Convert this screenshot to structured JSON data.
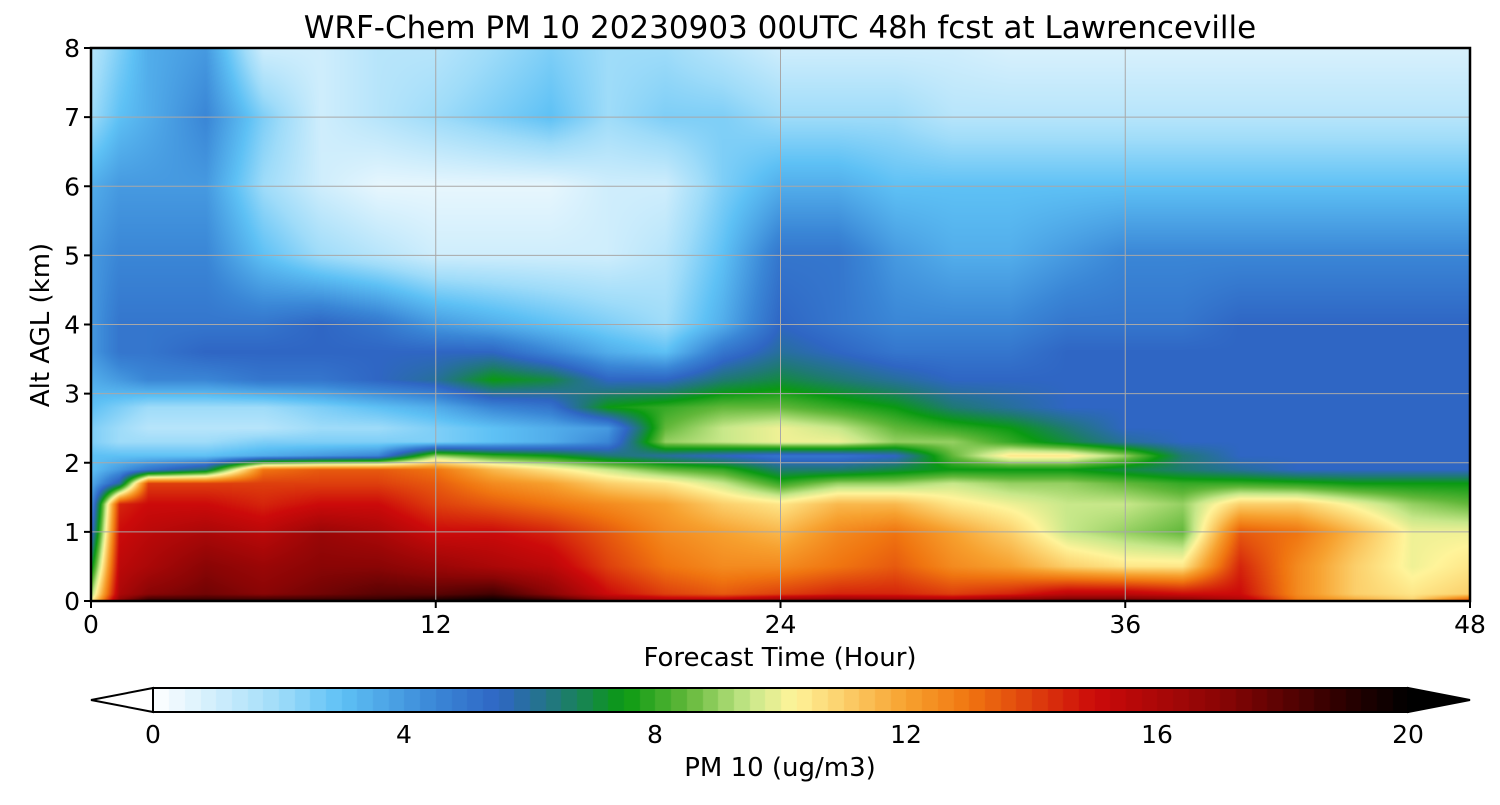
{
  "chart_data": {
    "type": "heatmap",
    "title": "WRF-Chem PM 10  20230903 00UTC 48h fcst at Lawrenceville",
    "xlabel": "Forecast Time (Hour)",
    "ylabel": "Alt AGL (km)",
    "xlim": [
      0,
      48
    ],
    "ylim": [
      0,
      8
    ],
    "x_ticks": [
      "0",
      "12",
      "24",
      "36",
      "48"
    ],
    "y_ticks": [
      "0",
      "1",
      "2",
      "3",
      "4",
      "5",
      "6",
      "7",
      "8"
    ],
    "grid": true,
    "colorbar": {
      "label": "PM 10  (ug/m3)",
      "range": [
        0,
        20
      ],
      "ticks": [
        "0",
        "4",
        "8",
        "12",
        "16",
        "20"
      ],
      "extend": "both",
      "placement": "bottom",
      "stops": [
        {
          "v": 0,
          "color": "#ffffff"
        },
        {
          "v": 2,
          "color": "#9fdcf9"
        },
        {
          "v": 3,
          "color": "#5ec1f5"
        },
        {
          "v": 4.5,
          "color": "#3a86d6"
        },
        {
          "v": 5.5,
          "color": "#2f66c4"
        },
        {
          "v": 6.5,
          "color": "#1f7a73"
        },
        {
          "v": 7.5,
          "color": "#0a9a12"
        },
        {
          "v": 8.5,
          "color": "#62b83a"
        },
        {
          "v": 9.5,
          "color": "#c8e88a"
        },
        {
          "v": 10.2,
          "color": "#fff49a"
        },
        {
          "v": 12,
          "color": "#f7a12f"
        },
        {
          "v": 13,
          "color": "#f07510"
        },
        {
          "v": 15,
          "color": "#cc0a0a"
        },
        {
          "v": 17,
          "color": "#8a0505"
        },
        {
          "v": 19,
          "color": "#2a0000"
        },
        {
          "v": 20,
          "color": "#000000"
        }
      ]
    },
    "field": {
      "x": [
        0,
        1,
        2,
        4,
        6,
        8,
        10,
        12,
        14,
        16,
        18,
        20,
        22,
        24,
        26,
        28,
        30,
        32,
        34,
        36,
        38,
        40,
        42,
        44,
        46,
        48
      ],
      "y": [
        0,
        0.1,
        0.5,
        1.0,
        1.4,
        1.7,
        1.9,
        2.1,
        2.3,
        2.5,
        2.8,
        3.2,
        3.6,
        4.0,
        5.0,
        6.0,
        7.0,
        8.0
      ],
      "z": [
        [
          10.0,
          17.0,
          19.0,
          19.0,
          19.0,
          19.0,
          19.0,
          19.5,
          20.0,
          19.0,
          17.0,
          16.0,
          16.0,
          17.0,
          17.5,
          17.0,
          16.5,
          17.5,
          18.0,
          18.0,
          17.5,
          16.0,
          13.0,
          12.0,
          11.0,
          14.0
        ],
        [
          9.0,
          16.0,
          17.0,
          17.5,
          17.0,
          17.5,
          18.0,
          18.0,
          18.5,
          17.0,
          15.0,
          14.0,
          13.5,
          14.0,
          14.5,
          14.5,
          14.0,
          14.5,
          15.5,
          15.5,
          15.0,
          15.0,
          12.5,
          11.0,
          10.5,
          11.0
        ],
        [
          7.0,
          15.5,
          16.0,
          17.0,
          16.5,
          17.0,
          17.0,
          16.5,
          16.0,
          15.5,
          14.0,
          13.0,
          12.5,
          12.5,
          13.0,
          13.5,
          12.5,
          12.0,
          11.0,
          10.5,
          10.5,
          14.5,
          12.5,
          11.0,
          10.0,
          10.5
        ],
        [
          5.0,
          15.0,
          15.5,
          16.0,
          15.5,
          16.5,
          16.0,
          15.0,
          15.0,
          14.5,
          13.5,
          12.5,
          12.0,
          11.5,
          12.5,
          13.0,
          12.0,
          11.0,
          9.5,
          9.0,
          8.5,
          13.5,
          13.0,
          11.5,
          10.0,
          10.0
        ],
        [
          4.0,
          14.5,
          15.0,
          15.0,
          14.5,
          15.0,
          15.0,
          14.0,
          13.5,
          13.0,
          12.5,
          12.0,
          11.0,
          10.5,
          11.5,
          11.5,
          10.5,
          10.0,
          9.5,
          9.5,
          9.0,
          11.0,
          11.0,
          10.0,
          9.0,
          8.5
        ],
        [
          3.5,
          6.0,
          14.0,
          14.0,
          14.0,
          14.0,
          14.0,
          13.5,
          12.5,
          12.0,
          11.0,
          10.5,
          9.5,
          8.0,
          9.0,
          9.0,
          9.5,
          9.0,
          9.0,
          8.5,
          8.0,
          8.0,
          7.8,
          7.5,
          7.5,
          7.5
        ],
        [
          3.0,
          4.0,
          5.0,
          6.5,
          13.0,
          13.5,
          13.5,
          13.0,
          11.5,
          10.5,
          9.5,
          8.5,
          8.0,
          6.5,
          6.5,
          7.0,
          7.5,
          7.5,
          7.5,
          7.0,
          6.5,
          6.0,
          5.5,
          5.5,
          5.5,
          5.5
        ],
        [
          3.0,
          3.0,
          3.0,
          3.0,
          3.5,
          4.0,
          4.5,
          9.0,
          8.0,
          7.5,
          6.5,
          6.0,
          5.5,
          5.0,
          5.0,
          5.5,
          8.5,
          10.5,
          10.5,
          9.0,
          6.5,
          5.5,
          5.5,
          5.5,
          5.5,
          5.5
        ],
        [
          2.5,
          2.0,
          2.0,
          2.0,
          2.5,
          2.5,
          2.5,
          2.5,
          3.0,
          3.5,
          4.5,
          9.0,
          9.5,
          10.0,
          10.0,
          9.0,
          9.0,
          8.0,
          7.0,
          6.0,
          5.5,
          5.5,
          5.5,
          5.5,
          5.5,
          5.5
        ],
        [
          2.5,
          2.0,
          1.5,
          1.5,
          1.5,
          2.0,
          2.0,
          2.5,
          3.0,
          3.5,
          4.0,
          8.5,
          9.5,
          10.0,
          9.5,
          8.5,
          8.0,
          7.5,
          6.5,
          5.5,
          5.5,
          5.5,
          5.5,
          5.5,
          5.5,
          5.5
        ],
        [
          3.0,
          2.5,
          2.0,
          2.0,
          2.0,
          2.5,
          3.0,
          3.5,
          4.5,
          5.0,
          7.5,
          8.0,
          8.5,
          8.5,
          8.0,
          7.5,
          6.5,
          6.0,
          5.5,
          5.5,
          5.5,
          5.5,
          5.5,
          5.5,
          5.5,
          5.5
        ],
        [
          3.5,
          4.0,
          4.5,
          4.5,
          5.0,
          5.0,
          5.5,
          6.0,
          7.5,
          7.0,
          5.5,
          5.5,
          6.5,
          7.0,
          6.5,
          6.0,
          5.5,
          5.5,
          5.5,
          5.5,
          5.5,
          5.5,
          5.5,
          5.5,
          5.5,
          5.5
        ],
        [
          4.0,
          5.0,
          5.0,
          5.5,
          5.5,
          5.5,
          5.5,
          5.5,
          5.5,
          4.5,
          3.5,
          3.0,
          5.0,
          6.0,
          5.5,
          5.0,
          5.0,
          5.0,
          5.5,
          5.5,
          5.5,
          5.5,
          5.5,
          5.5,
          5.5,
          5.5
        ],
        [
          4.0,
          5.0,
          5.0,
          5.0,
          5.0,
          5.5,
          5.0,
          4.0,
          3.5,
          3.0,
          2.5,
          2.0,
          3.5,
          5.5,
          5.0,
          4.5,
          4.5,
          4.5,
          5.0,
          5.0,
          5.0,
          5.5,
          5.5,
          5.5,
          5.5,
          5.5
        ],
        [
          4.0,
          4.5,
          4.5,
          4.5,
          3.0,
          2.0,
          1.5,
          1.0,
          1.0,
          1.0,
          1.0,
          1.5,
          3.0,
          5.0,
          5.0,
          4.0,
          3.5,
          3.5,
          4.0,
          4.5,
          4.5,
          4.5,
          4.5,
          4.5,
          4.5,
          4.5
        ],
        [
          3.5,
          4.0,
          4.0,
          4.0,
          2.0,
          1.0,
          0.5,
          0.5,
          0.5,
          0.5,
          1.0,
          1.0,
          2.5,
          3.5,
          3.5,
          3.0,
          3.0,
          3.0,
          3.0,
          3.0,
          3.0,
          3.0,
          3.0,
          3.0,
          3.0,
          3.0
        ],
        [
          2.0,
          3.0,
          3.5,
          4.5,
          2.5,
          1.0,
          1.5,
          2.0,
          2.5,
          3.0,
          2.0,
          2.5,
          2.5,
          2.0,
          2.0,
          2.0,
          1.5,
          1.5,
          1.5,
          1.5,
          1.5,
          1.5,
          1.5,
          1.5,
          1.5,
          1.5
        ],
        [
          1.5,
          2.5,
          3.5,
          4.0,
          1.0,
          1.0,
          1.5,
          1.5,
          2.0,
          2.5,
          2.0,
          2.0,
          1.5,
          1.0,
          1.0,
          1.0,
          1.0,
          0.8,
          0.8,
          0.8,
          0.8,
          0.8,
          0.8,
          0.8,
          0.8,
          0.8
        ]
      ]
    }
  }
}
